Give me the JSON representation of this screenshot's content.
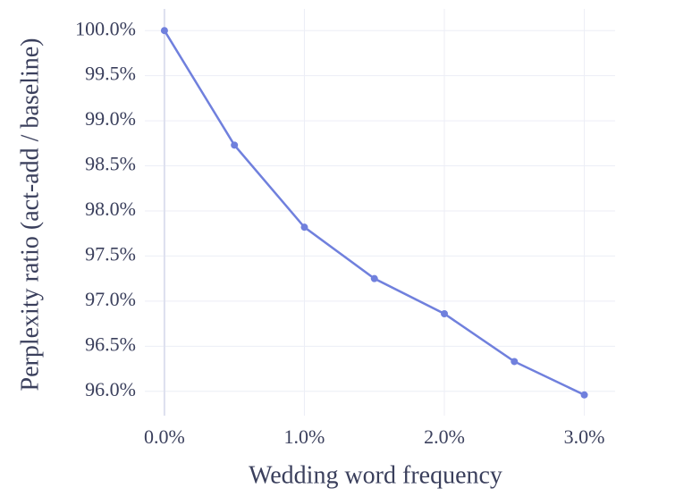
{
  "chart_data": {
    "type": "line",
    "x_label": "Wedding word frequency",
    "y_label": "Perplexity ratio (act-add / baseline)",
    "x": [
      0,
      0.5,
      1.0,
      1.5,
      2.0,
      2.5,
      3.0
    ],
    "series": [
      {
        "color": "#7080dd",
        "values": [
          100.0,
          98.73,
          97.82,
          97.25,
          96.86,
          96.33,
          95.96
        ]
      }
    ],
    "xlim": [
      -0.14,
      3.22
    ],
    "ylim": [
      95.73,
      100.24
    ],
    "xticks": [
      {
        "value": 0,
        "label": "0.0%"
      },
      {
        "value": 1,
        "label": "1.0%"
      },
      {
        "value": 2,
        "label": "2.0%"
      },
      {
        "value": 3,
        "label": "3.0%"
      }
    ],
    "yticks": [
      {
        "value": 96,
        "label": "96.0%"
      },
      {
        "value": 96.5,
        "label": "96.5%"
      },
      {
        "value": 97,
        "label": "97.0%"
      },
      {
        "value": 97.5,
        "label": "97.5%"
      },
      {
        "value": 98,
        "label": "98.0%"
      },
      {
        "value": 98.5,
        "label": "98.5%"
      },
      {
        "value": 99,
        "label": "99.0%"
      },
      {
        "value": 99.5,
        "label": "99.5%"
      },
      {
        "value": 100,
        "label": "100.0%"
      }
    ],
    "grid": true,
    "markers": true
  }
}
